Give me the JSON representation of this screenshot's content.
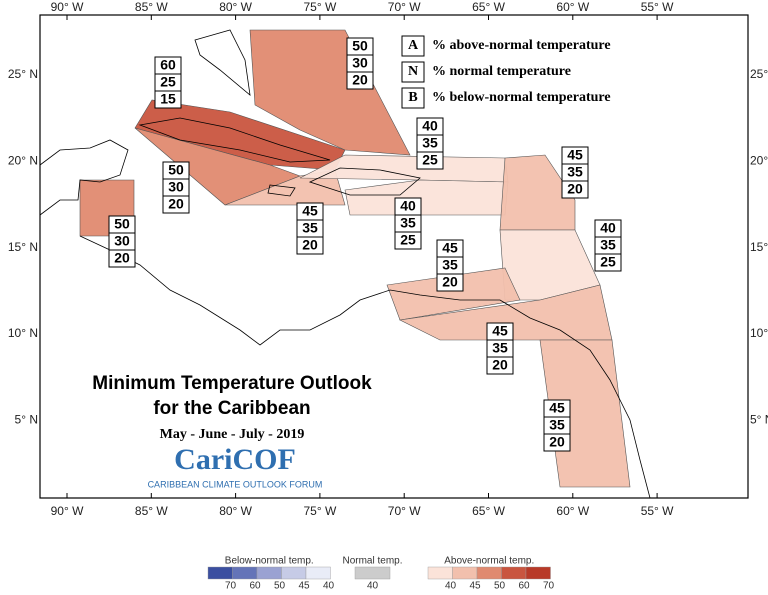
{
  "map": {
    "title": [
      "Minimum Temperature Outlook",
      "for the Caribbean"
    ],
    "subtitle": "May - June - July - 2019",
    "logo": {
      "name": "CariCOF",
      "tagline": "CARIBBEAN CLIMATE OUTLOOK FORUM"
    },
    "longitudes": [
      "90° W",
      "85° W",
      "80° W",
      "75° W",
      "70° W",
      "65° W",
      "60° W",
      "55° W"
    ],
    "latitudes": [
      "25° N",
      "20° N",
      "15° N",
      "10° N",
      "5° N"
    ],
    "key": [
      {
        "letter": "A",
        "text": "% above-normal temperature"
      },
      {
        "letter": "N",
        "text": "% normal temperature"
      },
      {
        "letter": "B",
        "text": "% below-normal temperature"
      }
    ],
    "regions": [
      {
        "values": [
          60,
          25,
          15
        ],
        "color": "#c9553f"
      },
      {
        "values": [
          50,
          30,
          20
        ],
        "color": "#e08a70"
      },
      {
        "values": [
          50,
          30,
          20
        ],
        "color": "#e08a70"
      },
      {
        "values": [
          50,
          30,
          20
        ],
        "color": "#e08a70"
      },
      {
        "values": [
          45,
          35,
          20
        ],
        "color": "#f2c0ad"
      },
      {
        "values": [
          40,
          35,
          25
        ],
        "color": "#fbe3d9"
      },
      {
        "values": [
          40,
          35,
          25
        ],
        "color": "#fbe3d9"
      },
      {
        "values": [
          45,
          35,
          20
        ],
        "color": "#f2c0ad"
      },
      {
        "values": [
          40,
          35,
          25
        ],
        "color": "#fbe3d9"
      },
      {
        "values": [
          45,
          35,
          20
        ],
        "color": "#f2c0ad"
      },
      {
        "values": [
          45,
          35,
          20
        ],
        "color": "#f2c0ad"
      },
      {
        "values": [
          45,
          35,
          20
        ],
        "color": "#f2c0ad"
      }
    ],
    "colorbar": [
      {
        "label": "Below-normal temp.",
        "ticks": [
          70,
          60,
          50,
          45,
          40
        ],
        "colors": [
          "#3b4fa0",
          "#6474b8",
          "#9aa2d2",
          "#c6cbe6",
          "#e9ecf7"
        ]
      },
      {
        "label": "Normal temp.",
        "ticks": [
          40
        ],
        "colors": [
          "#cccccc"
        ]
      },
      {
        "label": "Above-normal temp.",
        "ticks": [
          40,
          45,
          50,
          60,
          70
        ],
        "colors": [
          "#fbe3d9",
          "#f2c0ad",
          "#e08a70",
          "#c9553f",
          "#b83a28"
        ]
      }
    ]
  }
}
